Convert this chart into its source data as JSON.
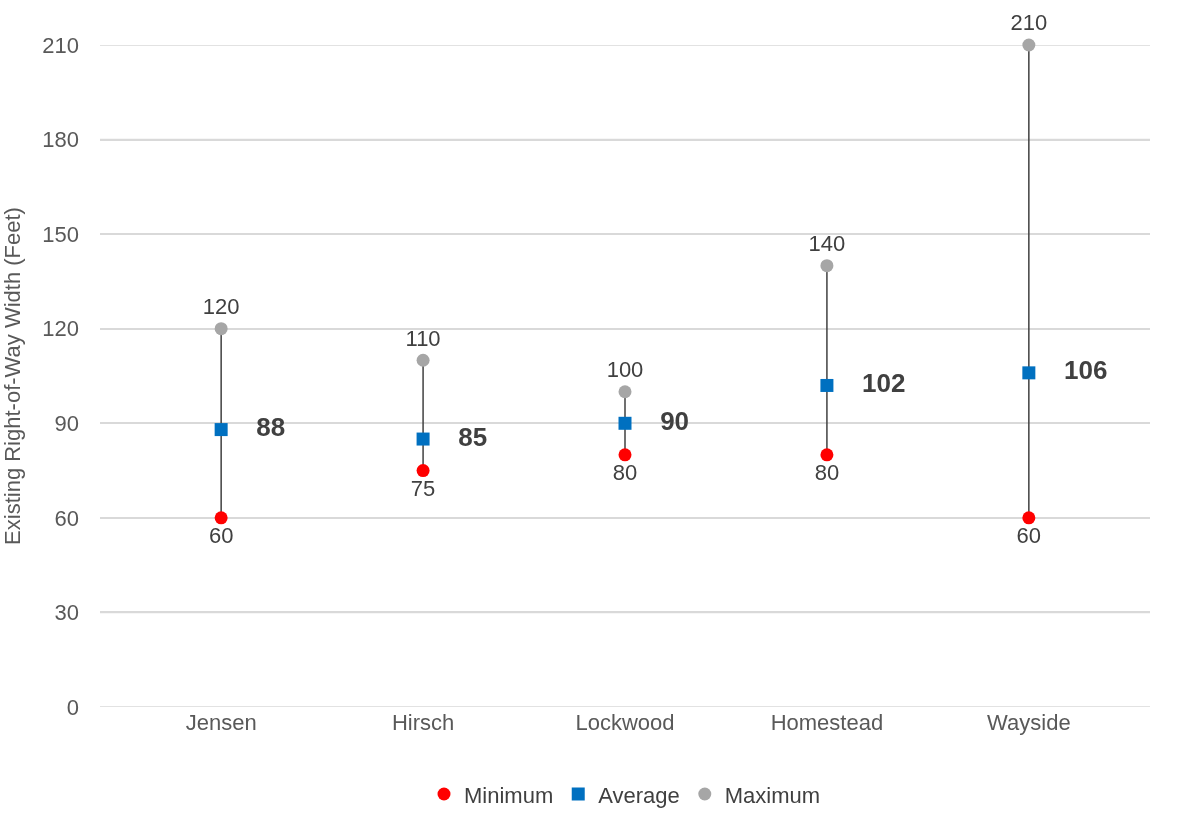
{
  "chart_data": {
    "type": "scatter",
    "ylabel": "Existing Right-of-Way Width (Feet)",
    "categories": [
      "Jensen",
      "Hirsch",
      "Lockwood",
      "Homestead",
      "Wayside"
    ],
    "series": [
      {
        "name": "Minimum",
        "color": "#ff0000",
        "marker": "circle",
        "values": [
          60,
          75,
          80,
          80,
          60
        ]
      },
      {
        "name": "Average",
        "color": "#0070c0",
        "marker": "square",
        "values": [
          88,
          85,
          90,
          102,
          106
        ]
      },
      {
        "name": "Maximum",
        "color": "#a6a6a6",
        "marker": "circle",
        "values": [
          120,
          110,
          100,
          140,
          210
        ]
      }
    ],
    "ylim": [
      0,
      210
    ],
    "yticks": [
      0,
      30,
      60,
      90,
      120,
      150,
      180,
      210
    ],
    "grid": "y",
    "legend": "bottom",
    "data_labels": true
  }
}
